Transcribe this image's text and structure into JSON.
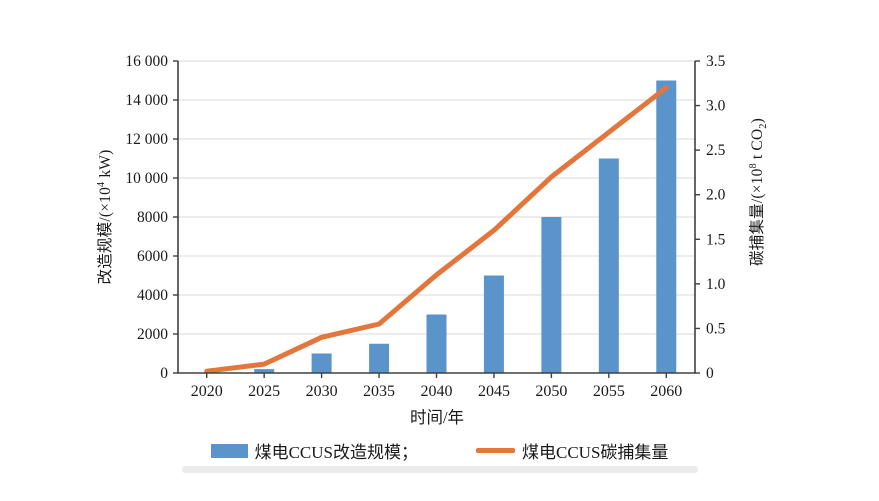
{
  "chart_data": {
    "type": "bar+line",
    "categories": [
      "2020",
      "2025",
      "2030",
      "2035",
      "2040",
      "2045",
      "2050",
      "2055",
      "2060"
    ],
    "series": [
      {
        "name": "煤电CCUS改造规模",
        "type": "bar",
        "axis": "left",
        "color": "#5B94CB",
        "values": [
          0,
          200,
          1000,
          1500,
          3000,
          5000,
          8000,
          11000,
          15000
        ]
      },
      {
        "name": "煤电CCUS碳捕集量",
        "type": "line",
        "axis": "right",
        "color": "#E2763B",
        "values": [
          0.02,
          0.1,
          0.4,
          0.55,
          1.1,
          1.6,
          2.2,
          2.7,
          3.2
        ]
      }
    ],
    "x_axis": {
      "title": "时间/年",
      "tick_labels": [
        "2020",
        "2025",
        "2030",
        "2035",
        "2040",
        "2045",
        "2050",
        "2055",
        "2060"
      ]
    },
    "left_axis": {
      "title_pre": "改造规模/(×10",
      "title_sup": "4",
      "title_post": " kW)",
      "range": [
        0,
        16000
      ],
      "ticks": [
        0,
        2000,
        4000,
        6000,
        8000,
        10000,
        12000,
        14000,
        16000
      ],
      "tick_labels": [
        "0",
        "2000",
        "4000",
        "6000",
        "8000",
        "10 000",
        "12 000",
        "14 000",
        "16 000"
      ]
    },
    "right_axis": {
      "title_pre": "碳捕集量/(×10",
      "title_sup": "8",
      "title_mid": " t CO",
      "title_sub": "2",
      "title_post": ")",
      "range": [
        0,
        3.5
      ],
      "ticks": [
        0,
        0.5,
        1.0,
        1.5,
        2.0,
        2.5,
        3.0,
        3.5
      ],
      "tick_labels": [
        "0",
        "0.5",
        "1.0",
        "1.5",
        "2.0",
        "2.5",
        "3.0",
        "3.5"
      ]
    },
    "legend": [
      {
        "label": "煤电CCUS改造规模；",
        "swatch": "bar",
        "color": "#5B94CB"
      },
      {
        "label": "煤电CCUS碳捕集量",
        "swatch": "line",
        "color": "#E2763B"
      }
    ],
    "grid": "horizontal",
    "legend_position": "bottom",
    "colors": {
      "bar": "#5B94CB",
      "line": "#E2763B",
      "grid": "#D9D9D9",
      "axis": "#404040",
      "text": "#1A1A1A"
    }
  }
}
